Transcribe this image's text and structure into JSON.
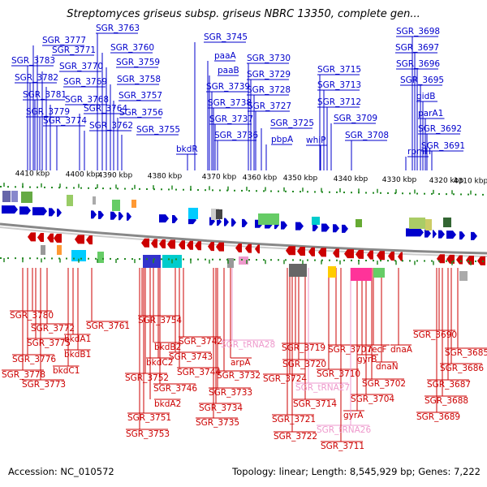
{
  "title": "Streptomyces griseus subsp. griseus NBRC 13350, complete gen...",
  "accession": "Accession: NC_010572",
  "topology": "Topology: linear; Length: 8,545,929 bp; Genes: 7,222",
  "colors": {
    "forward": "#0000cc",
    "reverse": "#cc0000",
    "rna": "#ee99cc",
    "tick": "#228822",
    "spine": "#888888"
  },
  "scale_labels": [
    "4410 kbp",
    "4400 kbp",
    "4390 kbp",
    "4380 kbp",
    "4370 kbp",
    "4360 kbp",
    "4350 kbp",
    "4340 kbp",
    "4330 kbp",
    "4320 kbp",
    "4310 kbp"
  ],
  "top_genes": [
    {
      "name": "SGR_3777",
      "type": "cds"
    },
    {
      "name": "SGR_3783",
      "type": "cds"
    },
    {
      "name": "SGR_3771",
      "type": "cds"
    },
    {
      "name": "SGR_3782",
      "type": "cds"
    },
    {
      "name": "SGR_3770",
      "type": "cds"
    },
    {
      "name": "SGR_3781",
      "type": "cds"
    },
    {
      "name": "SGR_3769",
      "type": "cds"
    },
    {
      "name": "SGR_3779",
      "type": "cds"
    },
    {
      "name": "SGR_3768",
      "type": "cds"
    },
    {
      "name": "SGR_3774",
      "type": "cds"
    },
    {
      "name": "SGR_3764",
      "type": "cds"
    },
    {
      "name": "SGR_3762",
      "type": "cds"
    },
    {
      "name": "SGR_3763",
      "type": "cds"
    },
    {
      "name": "SGR_3760",
      "type": "cds"
    },
    {
      "name": "SGR_3759",
      "type": "cds"
    },
    {
      "name": "SGR_3758",
      "type": "cds"
    },
    {
      "name": "SGR_3757",
      "type": "cds"
    },
    {
      "name": "SGR_3756",
      "type": "cds"
    },
    {
      "name": "SGR_3755",
      "type": "cds"
    },
    {
      "name": "bkdR",
      "type": "cds"
    },
    {
      "name": "SGR_3745",
      "type": "cds"
    },
    {
      "name": "paaA",
      "type": "cds"
    },
    {
      "name": "paaB",
      "type": "cds"
    },
    {
      "name": "SGR_3739",
      "type": "cds"
    },
    {
      "name": "SGR_3738",
      "type": "cds"
    },
    {
      "name": "SGR_3737",
      "type": "cds"
    },
    {
      "name": "SGR_3736",
      "type": "cds"
    },
    {
      "name": "SGR_3730",
      "type": "cds"
    },
    {
      "name": "SGR_3729",
      "type": "cds"
    },
    {
      "name": "SGR_3728",
      "type": "cds"
    },
    {
      "name": "SGR_3727",
      "type": "cds"
    },
    {
      "name": "SGR_3725",
      "type": "cds"
    },
    {
      "name": "pbpA",
      "type": "cds"
    },
    {
      "name": "SGR_3715",
      "type": "cds"
    },
    {
      "name": "SGR_3713",
      "type": "cds"
    },
    {
      "name": "SGR_3712",
      "type": "cds"
    },
    {
      "name": "SGR_3709",
      "type": "cds"
    },
    {
      "name": "whiP",
      "type": "cds"
    },
    {
      "name": "SGR_3708",
      "type": "cds"
    },
    {
      "name": "SGR_3698",
      "type": "cds"
    },
    {
      "name": "SGR_3697",
      "type": "cds"
    },
    {
      "name": "SGR_3696",
      "type": "cds"
    },
    {
      "name": "SGR_3695",
      "type": "cds"
    },
    {
      "name": "gidB",
      "type": "cds"
    },
    {
      "name": "parA1",
      "type": "cds"
    },
    {
      "name": "SGR_3692",
      "type": "cds"
    },
    {
      "name": "rpmH",
      "type": "cds"
    },
    {
      "name": "SGR_3691",
      "type": "cds"
    }
  ],
  "bottom_genes": [
    {
      "name": "SGR_3780",
      "type": "cds"
    },
    {
      "name": "SGR_3772",
      "type": "cds"
    },
    {
      "name": "SGR_3775",
      "type": "cds"
    },
    {
      "name": "SGR_3776",
      "type": "cds"
    },
    {
      "name": "SGR_3778",
      "type": "cds"
    },
    {
      "name": "SGR_3773",
      "type": "cds"
    },
    {
      "name": "bkdA1",
      "type": "cds"
    },
    {
      "name": "bkdB1",
      "type": "cds"
    },
    {
      "name": "bkdC1",
      "type": "cds"
    },
    {
      "name": "SGR_3761",
      "type": "cds"
    },
    {
      "name": "SGR_3754",
      "type": "cds"
    },
    {
      "name": "bkdB2",
      "type": "cds"
    },
    {
      "name": "bkdC2",
      "type": "cds"
    },
    {
      "name": "SGR_3752",
      "type": "cds"
    },
    {
      "name": "SGR_3746",
      "type": "cds"
    },
    {
      "name": "bkdA2",
      "type": "cds"
    },
    {
      "name": "SGR_3751",
      "type": "cds"
    },
    {
      "name": "SGR_3753",
      "type": "cds"
    },
    {
      "name": "SGR_3742",
      "type": "cds"
    },
    {
      "name": "SGR_3743",
      "type": "cds"
    },
    {
      "name": "SGR_3744",
      "type": "cds"
    },
    {
      "name": "SGR_tRNA28",
      "type": "rna"
    },
    {
      "name": "arpA",
      "type": "cds"
    },
    {
      "name": "SGR_3732",
      "type": "cds"
    },
    {
      "name": "SGR_3733",
      "type": "cds"
    },
    {
      "name": "SGR_3734",
      "type": "cds"
    },
    {
      "name": "SGR_3735",
      "type": "cds"
    },
    {
      "name": "SGR_3719",
      "type": "cds"
    },
    {
      "name": "SGR_3720",
      "type": "cds"
    },
    {
      "name": "SGR_3724",
      "type": "cds"
    },
    {
      "name": "SGR_tRNA27",
      "type": "rna"
    },
    {
      "name": "SGR_3714",
      "type": "cds"
    },
    {
      "name": "SGR_3721",
      "type": "cds"
    },
    {
      "name": "SGR_3722",
      "type": "cds"
    },
    {
      "name": "SGR_3707",
      "type": "cds"
    },
    {
      "name": "SGR_3710",
      "type": "cds"
    },
    {
      "name": "recF",
      "type": "cds"
    },
    {
      "name": "gyrB",
      "type": "cds"
    },
    {
      "name": "dnaN",
      "type": "cds"
    },
    {
      "name": "SGR_3702",
      "type": "cds"
    },
    {
      "name": "SGR_3704",
      "type": "cds"
    },
    {
      "name": "gyrA",
      "type": "cds"
    },
    {
      "name": "SGR_tRNA26",
      "type": "rna"
    },
    {
      "name": "SGR_3711",
      "type": "cds"
    },
    {
      "name": "dnaA",
      "type": "cds"
    },
    {
      "name": "SGR_3690",
      "type": "cds"
    },
    {
      "name": "SGR_3685",
      "type": "cds"
    },
    {
      "name": "SGR_3686",
      "type": "cds"
    },
    {
      "name": "SGR_3687",
      "type": "cds"
    },
    {
      "name": "SGR_3688",
      "type": "cds"
    },
    {
      "name": "SGR_3689",
      "type": "cds"
    }
  ]
}
